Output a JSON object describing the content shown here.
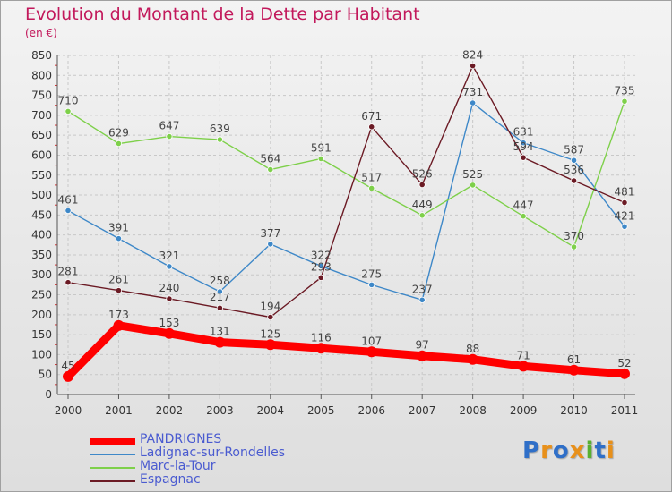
{
  "chart_data": {
    "type": "line",
    "title": "Evolution du Montant de la Dette par Habitant",
    "unit_label": "(en €)",
    "x": [
      "2000",
      "2001",
      "2002",
      "2003",
      "2004",
      "2005",
      "2006",
      "2007",
      "2008",
      "2009",
      "2010",
      "2011"
    ],
    "ylim": [
      0,
      850
    ],
    "yticks": [
      0,
      50,
      100,
      150,
      200,
      250,
      300,
      350,
      400,
      450,
      500,
      550,
      600,
      650,
      700,
      750,
      800,
      850
    ],
    "grid": true,
    "legend_position": "bottom-left",
    "series": [
      {
        "name": "PANDRIGNES",
        "color": "#ff0000",
        "values": [
          45,
          173,
          153,
          131,
          125,
          116,
          107,
          97,
          88,
          71,
          61,
          52
        ],
        "label_text": [
          "45",
          "173",
          "153",
          "131",
          "125",
          "116",
          "107",
          "97",
          "88",
          "71",
          "61",
          "52"
        ]
      },
      {
        "name": "Ladignac-sur-Rondelles",
        "color": "#3e88c8",
        "values": [
          461,
          391,
          321,
          258,
          377,
          322,
          275,
          237,
          731,
          631,
          587,
          421
        ],
        "label_text": [
          "461",
          "391",
          "321",
          "258",
          "377",
          "322",
          "275",
          "237",
          "731",
          "631",
          "587",
          "421"
        ]
      },
      {
        "name": "Marc-la-Tour",
        "color": "#7ed04a",
        "values": [
          710,
          629,
          647,
          639,
          564,
          591,
          517,
          449,
          525,
          447,
          370,
          735
        ],
        "label_text": [
          "710",
          "629",
          "647",
          "639",
          "564",
          "591",
          "517",
          "449",
          "525",
          "447",
          "370",
          "735"
        ]
      },
      {
        "name": "Espagnac",
        "color": "#6b1a24",
        "values": [
          281,
          261,
          240,
          217,
          194,
          293,
          671,
          526,
          824,
          594,
          536,
          481
        ],
        "label_text": [
          "281",
          "261",
          "240",
          "217",
          "194",
          "293",
          "671",
          "526",
          "824",
          "594",
          "536",
          "481"
        ]
      }
    ]
  },
  "logo": {
    "text": "Proxiti",
    "letter_colors": [
      "#2f6fc8",
      "#e8901a",
      "#2f6fc8",
      "#e8901a",
      "#58b030",
      "#2f6fc8",
      "#e8901a"
    ]
  }
}
